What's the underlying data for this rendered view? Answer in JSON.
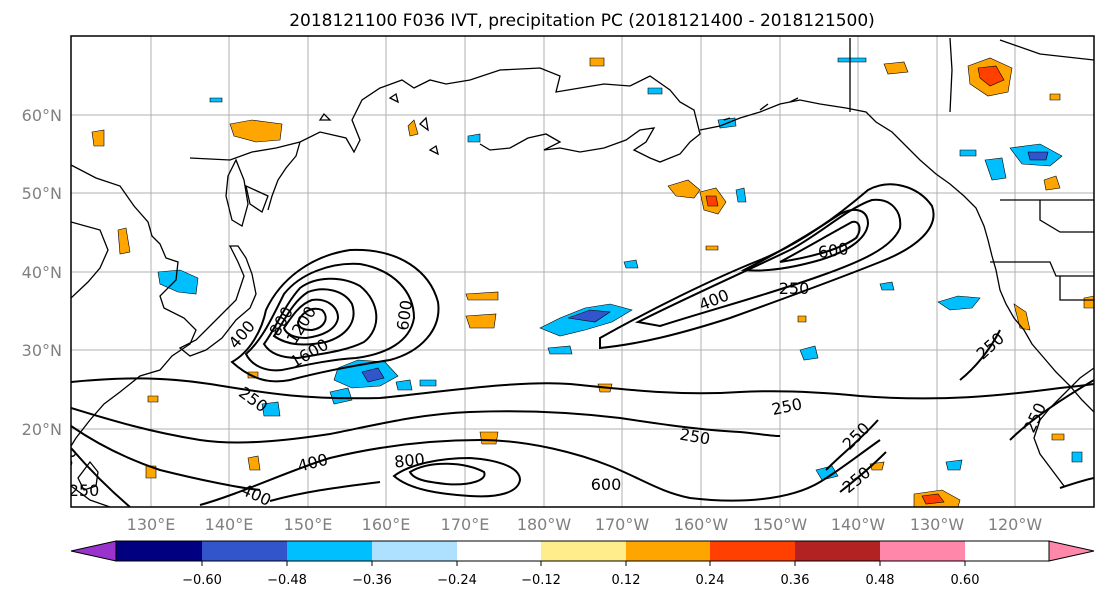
{
  "title": "2018121100 F036 IVT, precipitation PC (2018121400 - 2018121500)",
  "lon_labels": [
    "130°E",
    "140°E",
    "150°E",
    "160°E",
    "170°E",
    "180°W",
    "170°W",
    "160°W",
    "150°W",
    "140°W",
    "130°W",
    "120°W"
  ],
  "lat_labels": [
    "60°N",
    "50°N",
    "40°N",
    "30°N",
    "20°N"
  ],
  "colorbar": {
    "ticks": [
      "−0.60",
      "−0.48",
      "−0.36",
      "−0.24",
      "−0.12",
      "0.12",
      "0.24",
      "0.36",
      "0.48",
      "0.60"
    ],
    "colors": [
      "#9933cc",
      "#000080",
      "#3355cc",
      "#00bfff",
      "#aee0ff",
      "#ffffff",
      "#ffec8b",
      "#ffa500",
      "#ff4000",
      "#b22222",
      "#ff88aa"
    ]
  },
  "contour_labels": [
    "1200",
    "1600",
    "800",
    "600",
    "400",
    "250",
    "250",
    "400",
    "600",
    "250",
    "250",
    "250",
    "250",
    "250",
    "250",
    "400",
    "400",
    "800",
    "600",
    "250",
    "250"
  ]
}
